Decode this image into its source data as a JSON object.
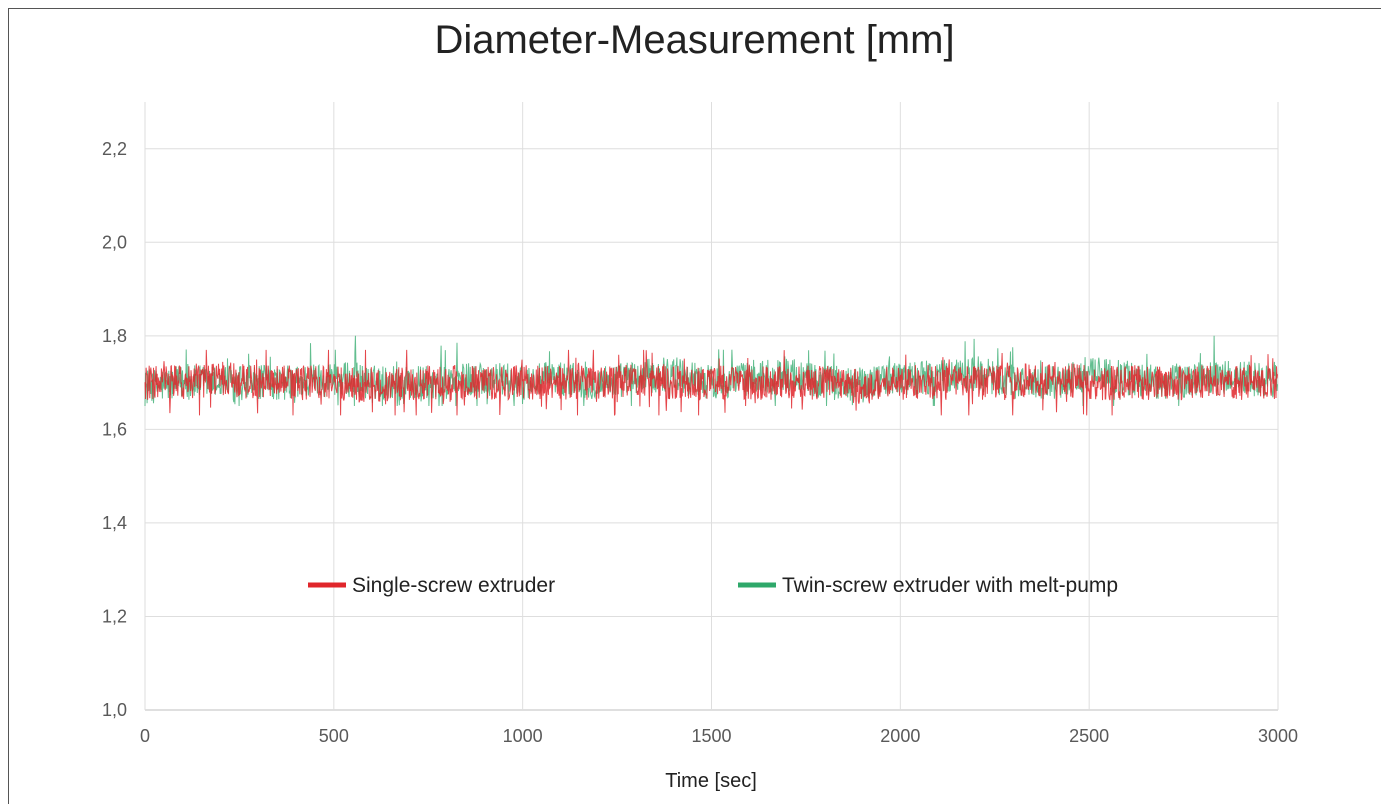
{
  "chart_data": {
    "type": "line",
    "title": "Diameter-Measurement [mm]",
    "xlabel": "Time [sec]",
    "ylabel": "",
    "xlim": [
      0,
      3000
    ],
    "ylim": [
      1.0,
      2.3
    ],
    "x_ticks": [
      0,
      500,
      1000,
      1500,
      2000,
      2500,
      3000
    ],
    "x_tick_labels": [
      "0",
      "500",
      "1000",
      "1500",
      "2000",
      "2500",
      "3000"
    ],
    "y_ticks": [
      1.0,
      1.2,
      1.4,
      1.6,
      1.8,
      2.0,
      2.2
    ],
    "y_tick_labels": [
      "1,0",
      "1,2",
      "1,4",
      "1,6",
      "1,8",
      "2,0",
      "2,2"
    ],
    "grid": true,
    "legend_placement": "lower-center inside",
    "series": [
      {
        "name": "Twin-screw extruder with melt-pump",
        "color": "#2ea86a",
        "mean": 1.7,
        "min": 1.65,
        "max": 1.8,
        "x": [
          0,
          100,
          200,
          300,
          400,
          500,
          600,
          700,
          800,
          900,
          1000,
          1100,
          1200,
          1300,
          1400,
          1500,
          1600,
          1700,
          1800,
          1900,
          2000,
          2100,
          2200,
          2300,
          2400,
          2500,
          2600,
          2700,
          2800,
          2900,
          3000
        ],
        "values": [
          1.69,
          1.7,
          1.7,
          1.7,
          1.7,
          1.71,
          1.7,
          1.7,
          1.7,
          1.71,
          1.7,
          1.71,
          1.7,
          1.71,
          1.72,
          1.7,
          1.71,
          1.72,
          1.7,
          1.7,
          1.71,
          1.71,
          1.72,
          1.7,
          1.7,
          1.72,
          1.71,
          1.7,
          1.71,
          1.71,
          1.7
        ]
      },
      {
        "name": "Single-screw extruder",
        "color": "#e0262b",
        "mean": 1.7,
        "min": 1.63,
        "max": 1.77,
        "x": [
          0,
          100,
          200,
          300,
          400,
          500,
          600,
          700,
          800,
          900,
          1000,
          1100,
          1200,
          1300,
          1400,
          1500,
          1600,
          1700,
          1800,
          1900,
          2000,
          2100,
          2200,
          2300,
          2400,
          2500,
          2600,
          2700,
          2800,
          2900,
          3000
        ],
        "values": [
          1.7,
          1.7,
          1.71,
          1.7,
          1.7,
          1.7,
          1.69,
          1.7,
          1.7,
          1.7,
          1.7,
          1.7,
          1.7,
          1.71,
          1.7,
          1.7,
          1.7,
          1.7,
          1.7,
          1.69,
          1.7,
          1.7,
          1.7,
          1.7,
          1.71,
          1.7,
          1.7,
          1.7,
          1.7,
          1.7,
          1.7
        ]
      }
    ],
    "legend": [
      {
        "label": "Single-screw extruder",
        "color": "#e0262b"
      },
      {
        "label": "Twin-screw extruder with melt-pump",
        "color": "#2ea86a"
      }
    ]
  }
}
